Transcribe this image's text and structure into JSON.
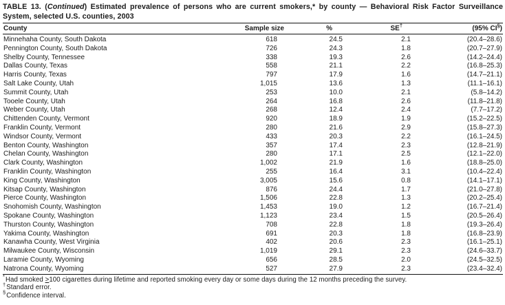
{
  "title": {
    "prefix": "TABLE 13. (",
    "continued": "Continued",
    "rest": ") Estimated prevalence of persons who are current smokers,* by county — Behavioral Risk Factor Surveillance System, selected U.S. counties, 2003"
  },
  "table": {
    "columns": [
      {
        "label": "County"
      },
      {
        "label": "Sample size"
      },
      {
        "label": "%"
      },
      {
        "label": "SE",
        "sup": "†"
      },
      {
        "label": "(95% CI",
        "sup": "§",
        "post": ")"
      }
    ],
    "rows": [
      {
        "county": "Minnehaha County, South Dakota",
        "sample_size": "618",
        "pct": "24.5",
        "se": "2.1",
        "ci": "(20.4–28.6)"
      },
      {
        "county": "Pennington County, South Dakota",
        "sample_size": "726",
        "pct": "24.3",
        "se": "1.8",
        "ci": "(20.7–27.9)"
      },
      {
        "county": "Shelby County, Tennessee",
        "sample_size": "338",
        "pct": "19.3",
        "se": "2.6",
        "ci": "(14.2–24.4)"
      },
      {
        "county": "Dallas County, Texas",
        "sample_size": "558",
        "pct": "21.1",
        "se": "2.2",
        "ci": "(16.8–25.3)"
      },
      {
        "county": "Harris County, Texas",
        "sample_size": "797",
        "pct": "17.9",
        "se": "1.6",
        "ci": "(14.7–21.1)"
      },
      {
        "county": "Salt Lake County, Utah",
        "sample_size": "1,015",
        "pct": "13.6",
        "se": "1.3",
        "ci": "(11.1–16.1)"
      },
      {
        "county": "Summit County, Utah",
        "sample_size": "253",
        "pct": "10.0",
        "se": "2.1",
        "ci": "(5.8–14.2)"
      },
      {
        "county": "Tooele County, Utah",
        "sample_size": "264",
        "pct": "16.8",
        "se": "2.6",
        "ci": "(11.8–21.8)"
      },
      {
        "county": "Weber County, Utah",
        "sample_size": "268",
        "pct": "12.4",
        "se": "2.4",
        "ci": "(7.7–17.2)"
      },
      {
        "county": "Chittenden County, Vermont",
        "sample_size": "920",
        "pct": "18.9",
        "se": "1.9",
        "ci": "(15.2–22.5)"
      },
      {
        "county": "Franklin County, Vermont",
        "sample_size": "280",
        "pct": "21.6",
        "se": "2.9",
        "ci": "(15.8–27.3)"
      },
      {
        "county": "Windsor County, Vermont",
        "sample_size": "433",
        "pct": "20.3",
        "se": "2.2",
        "ci": "(16.1–24.5)"
      },
      {
        "county": "Benton County, Washington",
        "sample_size": "357",
        "pct": "17.4",
        "se": "2.3",
        "ci": "(12.8–21.9)"
      },
      {
        "county": "Chelan County, Washington",
        "sample_size": "280",
        "pct": "17.1",
        "se": "2.5",
        "ci": "(12.1–22.0)"
      },
      {
        "county": "Clark County, Washington",
        "sample_size": "1,002",
        "pct": "21.9",
        "se": "1.6",
        "ci": "(18.8–25.0)"
      },
      {
        "county": "Franklin County, Washington",
        "sample_size": "255",
        "pct": "16.4",
        "se": "3.1",
        "ci": "(10.4–22.4)"
      },
      {
        "county": "King County, Washington",
        "sample_size": "3,005",
        "pct": "15.6",
        "se": "0.8",
        "ci": "(14.1–17.1)"
      },
      {
        "county": "Kitsap County, Washington",
        "sample_size": "876",
        "pct": "24.4",
        "se": "1.7",
        "ci": "(21.0–27.8)"
      },
      {
        "county": "Pierce County, Washington",
        "sample_size": "1,506",
        "pct": "22.8",
        "se": "1.3",
        "ci": "(20.2–25.4)"
      },
      {
        "county": "Snohomish County, Washington",
        "sample_size": "1,453",
        "pct": "19.0",
        "se": "1.2",
        "ci": "(16.7–21.4)"
      },
      {
        "county": "Spokane County, Washington",
        "sample_size": "1,123",
        "pct": "23.4",
        "se": "1.5",
        "ci": "(20.5–26.4)"
      },
      {
        "county": "Thurston County, Washington",
        "sample_size": "708",
        "pct": "22.8",
        "se": "1.8",
        "ci": "(19.3–26.4)"
      },
      {
        "county": "Yakima County, Washington",
        "sample_size": "691",
        "pct": "20.3",
        "se": "1.8",
        "ci": "(16.8–23.9)"
      },
      {
        "county": "Kanawha County, West Virginia",
        "sample_size": "402",
        "pct": "20.6",
        "se": "2.3",
        "ci": "(16.1–25.1)"
      },
      {
        "county": "Milwaukee County, Wisconsin",
        "sample_size": "1,019",
        "pct": "29.1",
        "se": "2.3",
        "ci": "(24.6–33.7)"
      },
      {
        "county": "Laramie County, Wyoming",
        "sample_size": "656",
        "pct": "28.5",
        "se": "2.0",
        "ci": "(24.5–32.5)"
      },
      {
        "county": "Natrona County, Wyoming",
        "sample_size": "527",
        "pct": "27.9",
        "se": "2.3",
        "ci": "(23.4–32.4)"
      }
    ]
  },
  "footnotes": [
    {
      "marker": "*",
      "pre": "Had smoked ",
      "geq": ">",
      "post": "100 cigarettes during lifetime and reported smoking every day or some days during the 12 months preceding the survey."
    },
    {
      "marker": "†",
      "text": "Standard error."
    },
    {
      "marker": "§",
      "text": "Confidence interval."
    }
  ]
}
